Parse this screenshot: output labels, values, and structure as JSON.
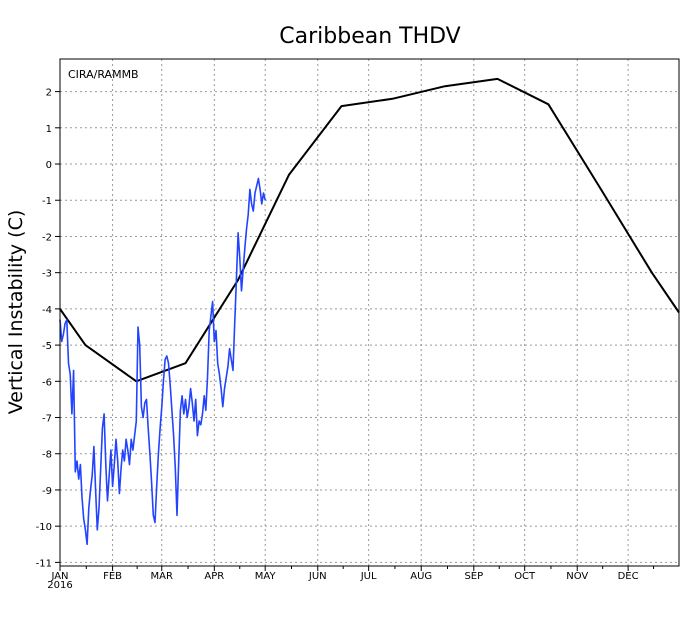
{
  "chart_data": {
    "type": "line",
    "title": "Caribbean THDV",
    "ylabel": "Vertical Instability (C)",
    "credit": "CIRA/RAMMB",
    "xlim": [
      0,
      365
    ],
    "ylim": [
      -11.1,
      2.9
    ],
    "yticks": [
      2,
      1,
      0,
      -1,
      -2,
      -3,
      -4,
      -5,
      -6,
      -7,
      -8,
      -9,
      -10,
      -11
    ],
    "xticks": [
      {
        "label": "JAN",
        "day": 0
      },
      {
        "label": "FEB",
        "day": 31
      },
      {
        "label": "MAR",
        "day": 60
      },
      {
        "label": "APR",
        "day": 91
      },
      {
        "label": "MAY",
        "day": 121
      },
      {
        "label": "JUN",
        "day": 152
      },
      {
        "label": "JUL",
        "day": 182
      },
      {
        "label": "AUG",
        "day": 213
      },
      {
        "label": "SEP",
        "day": 244
      },
      {
        "label": "OCT",
        "day": 274
      },
      {
        "label": "NOV",
        "day": 305
      },
      {
        "label": "DEC",
        "day": 335
      }
    ],
    "year_label": "2016",
    "grid": true,
    "series": [
      {
        "color": "#000000",
        "points": [
          [
            0,
            -4.0
          ],
          [
            15,
            -5.0
          ],
          [
            45,
            -6.0
          ],
          [
            74,
            -5.5
          ],
          [
            105,
            -3.2
          ],
          [
            135,
            -0.3
          ],
          [
            166,
            1.6
          ],
          [
            196,
            1.8
          ],
          [
            227,
            2.15
          ],
          [
            258,
            2.35
          ],
          [
            288,
            1.65
          ],
          [
            319,
            -0.7
          ],
          [
            349,
            -3.0
          ],
          [
            365,
            -4.1
          ]
        ]
      },
      {
        "color": "#2244ff",
        "points": [
          [
            0,
            -4.3
          ],
          [
            1,
            -4.9
          ],
          [
            2,
            -4.7
          ],
          [
            3,
            -4.4
          ],
          [
            4,
            -4.3
          ],
          [
            5,
            -5.5
          ],
          [
            6,
            -5.8
          ],
          [
            7,
            -6.9
          ],
          [
            8,
            -5.7
          ],
          [
            9,
            -8.5
          ],
          [
            10,
            -8.2
          ],
          [
            11,
            -8.7
          ],
          [
            12,
            -8.3
          ],
          [
            13,
            -9.2
          ],
          [
            14,
            -9.8
          ],
          [
            15,
            -10.1
          ],
          [
            16,
            -10.5
          ],
          [
            17,
            -9.5
          ],
          [
            18,
            -9.0
          ],
          [
            19,
            -8.6
          ],
          [
            20,
            -7.8
          ],
          [
            21,
            -9.0
          ],
          [
            22,
            -10.1
          ],
          [
            23,
            -9.5
          ],
          [
            24,
            -8.4
          ],
          [
            25,
            -7.3
          ],
          [
            26,
            -6.9
          ],
          [
            27,
            -8.3
          ],
          [
            28,
            -9.3
          ],
          [
            29,
            -8.6
          ],
          [
            30,
            -7.9
          ],
          [
            31,
            -8.9
          ],
          [
            32,
            -8.3
          ],
          [
            33,
            -7.6
          ],
          [
            34,
            -8.2
          ],
          [
            35,
            -9.1
          ],
          [
            36,
            -8.4
          ],
          [
            37,
            -7.9
          ],
          [
            38,
            -8.2
          ],
          [
            39,
            -7.6
          ],
          [
            40,
            -7.9
          ],
          [
            41,
            -8.3
          ],
          [
            42,
            -7.6
          ],
          [
            43,
            -7.9
          ],
          [
            44,
            -7.5
          ],
          [
            45,
            -7.1
          ],
          [
            46,
            -4.5
          ],
          [
            47,
            -5.0
          ],
          [
            48,
            -6.7
          ],
          [
            49,
            -7.0
          ],
          [
            50,
            -6.6
          ],
          [
            51,
            -6.5
          ],
          [
            52,
            -7.3
          ],
          [
            53,
            -8.0
          ],
          [
            54,
            -8.8
          ],
          [
            55,
            -9.7
          ],
          [
            56,
            -9.9
          ],
          [
            57,
            -8.9
          ],
          [
            58,
            -8.0
          ],
          [
            59,
            -7.3
          ],
          [
            60,
            -6.7
          ],
          [
            61,
            -6.0
          ],
          [
            62,
            -5.4
          ],
          [
            63,
            -5.3
          ],
          [
            64,
            -5.5
          ],
          [
            65,
            -6.1
          ],
          [
            66,
            -6.8
          ],
          [
            67,
            -7.5
          ],
          [
            68,
            -8.4
          ],
          [
            69,
            -9.7
          ],
          [
            70,
            -8.2
          ],
          [
            71,
            -6.8
          ],
          [
            72,
            -6.4
          ],
          [
            73,
            -6.9
          ],
          [
            74,
            -6.5
          ],
          [
            75,
            -7.0
          ],
          [
            76,
            -6.7
          ],
          [
            77,
            -6.2
          ],
          [
            78,
            -6.6
          ],
          [
            79,
            -7.1
          ],
          [
            80,
            -6.5
          ],
          [
            81,
            -7.5
          ],
          [
            82,
            -7.1
          ],
          [
            83,
            -7.2
          ],
          [
            84,
            -6.9
          ],
          [
            85,
            -6.4
          ],
          [
            86,
            -6.8
          ],
          [
            87,
            -5.9
          ],
          [
            88,
            -4.6
          ],
          [
            89,
            -4.2
          ],
          [
            90,
            -3.8
          ],
          [
            91,
            -4.9
          ],
          [
            92,
            -4.6
          ],
          [
            93,
            -5.5
          ],
          [
            94,
            -5.8
          ],
          [
            95,
            -6.2
          ],
          [
            96,
            -6.7
          ],
          [
            97,
            -6.2
          ],
          [
            98,
            -5.9
          ],
          [
            99,
            -5.6
          ],
          [
            100,
            -5.1
          ],
          [
            101,
            -5.4
          ],
          [
            102,
            -5.7
          ],
          [
            103,
            -4.4
          ],
          [
            104,
            -3.2
          ],
          [
            105,
            -1.9
          ],
          [
            106,
            -2.6
          ],
          [
            107,
            -3.5
          ],
          [
            108,
            -2.9
          ],
          [
            109,
            -2.3
          ],
          [
            110,
            -1.8
          ],
          [
            111,
            -1.4
          ],
          [
            112,
            -0.7
          ],
          [
            113,
            -1.1
          ],
          [
            114,
            -1.3
          ],
          [
            115,
            -0.8
          ],
          [
            116,
            -0.6
          ],
          [
            117,
            -0.4
          ],
          [
            118,
            -0.7
          ],
          [
            119,
            -1.1
          ],
          [
            120,
            -0.8
          ],
          [
            121,
            -1.0
          ]
        ]
      }
    ]
  }
}
